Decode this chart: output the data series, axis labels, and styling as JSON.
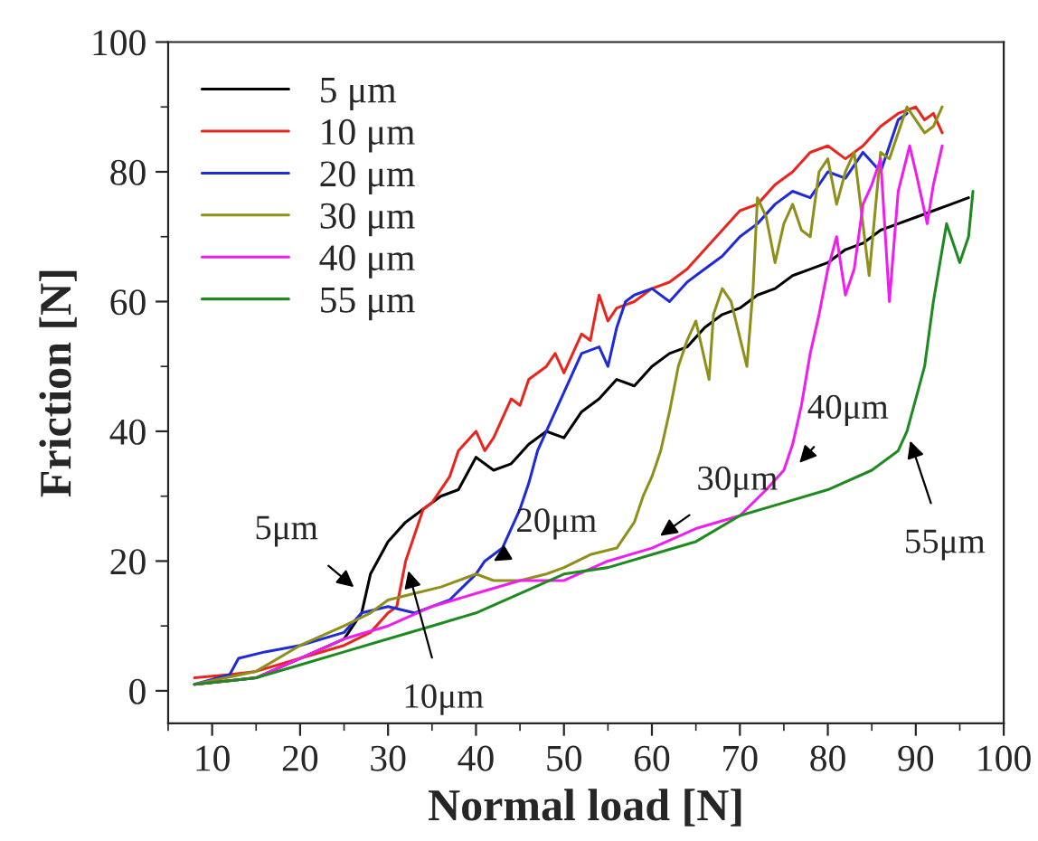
{
  "chart_data": {
    "type": "line",
    "xlabel": "Normal load [N]",
    "ylabel": "Friction [N]",
    "xlim": [
      5,
      100
    ],
    "ylim": [
      -5,
      100
    ],
    "xticks": [
      10,
      20,
      30,
      40,
      50,
      60,
      70,
      80,
      90,
      100
    ],
    "yticks": [
      0,
      20,
      40,
      60,
      80,
      100
    ],
    "grid": false,
    "legend": "top left",
    "series": [
      {
        "name": "5 μm",
        "color": "#000000",
        "x": [
          8,
          15,
          20,
          25,
          27,
          28,
          30,
          32,
          34,
          36,
          38,
          40,
          42,
          44,
          46,
          48,
          50,
          52,
          54,
          56,
          58,
          60,
          62,
          64,
          66,
          68,
          70,
          72,
          74,
          76,
          78,
          80,
          82,
          84,
          86,
          88,
          90,
          92,
          94,
          96
        ],
        "values": [
          1,
          2,
          5,
          8,
          12,
          18,
          23,
          26,
          28,
          30,
          31,
          36,
          34,
          35,
          38,
          40,
          39,
          43,
          45,
          48,
          47,
          50,
          52,
          53,
          56,
          58,
          59,
          61,
          62,
          64,
          65,
          66,
          68,
          69,
          71,
          72,
          73,
          74,
          75,
          76
        ]
      },
      {
        "name": "10 μm",
        "color": "#e8261e",
        "x": [
          8,
          12,
          15,
          20,
          25,
          28,
          30,
          31,
          32,
          34,
          35,
          37,
          38,
          40,
          41,
          42,
          44,
          45,
          46,
          48,
          49,
          50,
          52,
          53,
          54,
          55,
          56,
          58,
          60,
          62,
          64,
          66,
          68,
          70,
          72,
          74,
          76,
          78,
          80,
          82,
          84,
          86,
          88,
          90,
          91,
          92,
          93
        ],
        "values": [
          2,
          2.5,
          3,
          5,
          7,
          9,
          12,
          13,
          20,
          28,
          29,
          33,
          37,
          40,
          37,
          39,
          45,
          44,
          48,
          50,
          52,
          49,
          55,
          54,
          61,
          57,
          59,
          60,
          62,
          63,
          65,
          68,
          71,
          74,
          75,
          78,
          80,
          83,
          84,
          82,
          84,
          87,
          89,
          90,
          88,
          89,
          86
        ]
      },
      {
        "name": "20 μm",
        "color": "#1f2bd6",
        "x": [
          8,
          12,
          13,
          16,
          20,
          25,
          27,
          30,
          33,
          35,
          37,
          40,
          41,
          43,
          45,
          46,
          47,
          48,
          49,
          50,
          51,
          52,
          54,
          55,
          56,
          57,
          58,
          60,
          62,
          64,
          66,
          68,
          70,
          72,
          74,
          76,
          78,
          80,
          82,
          84,
          86,
          87,
          88,
          89
        ],
        "values": [
          1,
          2.5,
          5,
          6,
          7,
          9,
          12,
          13,
          12,
          13,
          14,
          18,
          20,
          22,
          28,
          32,
          37,
          40,
          43,
          46,
          49,
          52,
          53,
          50,
          56,
          60,
          61,
          62,
          60,
          63,
          65,
          67,
          70,
          72,
          75,
          77,
          76,
          80,
          79,
          83,
          80,
          84,
          88,
          89
        ]
      },
      {
        "name": "30 μm",
        "color": "#8f8f1c",
        "x": [
          8,
          15,
          20,
          25,
          28,
          30,
          33,
          36,
          40,
          42,
          45,
          48,
          50,
          53,
          56,
          58,
          59,
          60,
          61,
          62,
          63,
          64,
          65,
          66.5,
          67,
          68,
          69,
          70.8,
          71.5,
          72,
          73,
          74,
          75,
          76,
          77,
          78,
          79,
          80,
          81,
          82,
          83,
          84.7,
          86,
          87,
          88,
          89,
          90,
          91,
          92,
          93
        ],
        "values": [
          1,
          3,
          7,
          10,
          12,
          14,
          15,
          16,
          18,
          17,
          17,
          18,
          19,
          21,
          22,
          26,
          30,
          33,
          37,
          43,
          50,
          54,
          57,
          48,
          58,
          62,
          60,
          50,
          62,
          76,
          73,
          66,
          72,
          75,
          71,
          70,
          80,
          82,
          75,
          80,
          83,
          64,
          83,
          82,
          86,
          90,
          88,
          86,
          87,
          90
        ]
      },
      {
        "name": "40 μm",
        "color": "#ee1fee",
        "x": [
          8,
          15,
          20,
          25,
          30,
          35,
          40,
          45,
          50,
          55,
          60,
          65,
          70,
          73,
          75,
          76,
          77,
          78,
          79,
          80,
          81,
          82,
          83,
          84,
          85,
          86,
          87,
          88,
          89.3,
          90,
          91.3,
          92,
          93
        ],
        "values": [
          1,
          2,
          5,
          8,
          10,
          13,
          15,
          17,
          17,
          20,
          22,
          25,
          27,
          31,
          34,
          38,
          44,
          52,
          58,
          65,
          70,
          61,
          65,
          75,
          78,
          82,
          60,
          77,
          84,
          80,
          72,
          78,
          84
        ]
      },
      {
        "name": "55 μm",
        "color": "#1f8a1f",
        "x": [
          8,
          15,
          20,
          25,
          30,
          35,
          40,
          45,
          50,
          55,
          60,
          65,
          70,
          75,
          80,
          85,
          88,
          89,
          90,
          91,
          92,
          93,
          93.5,
          94,
          95,
          95.5,
          96,
          96.5
        ],
        "values": [
          1,
          2,
          4,
          6,
          8,
          10,
          12,
          15,
          18,
          19,
          21,
          23,
          27,
          29,
          31,
          34,
          37,
          40,
          45,
          50,
          60,
          68,
          72,
          70,
          66,
          68,
          70,
          77
        ]
      }
    ],
    "annotations": [
      {
        "text": "5μm",
        "x": 27,
        "y": 15
      },
      {
        "text": "10μm",
        "x": 32,
        "y": 20
      },
      {
        "text": "20μm",
        "x": 42,
        "y": 20
      },
      {
        "text": "30μm",
        "x": 60,
        "y": 23
      },
      {
        "text": "40μm",
        "x": 76,
        "y": 34
      },
      {
        "text": "55μm",
        "x": 89,
        "y": 40
      }
    ]
  }
}
